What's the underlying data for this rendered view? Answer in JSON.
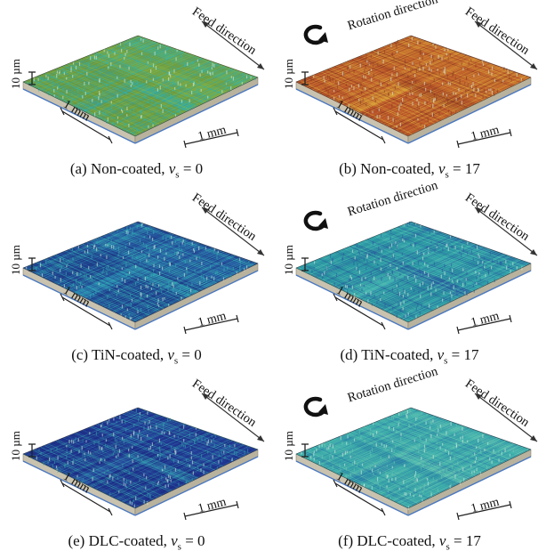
{
  "panels": [
    {
      "id": "a",
      "caption_prefix": "(a) Non-coated, ",
      "var": "v",
      "sub": "s",
      "caption_suffix": " = 0",
      "feed_label": "Feed direction",
      "rotation_label": "",
      "scale_label": "10 µm",
      "length_label_1": "1 mm",
      "length_label_2": "1 mm",
      "palette": [
        "#6b9a3f",
        "#7fb04a",
        "#3fa18f",
        "#2fb6b0"
      ]
    },
    {
      "id": "b",
      "caption_prefix": "(b) Non-coated, ",
      "var": "v",
      "sub": "s",
      "caption_suffix": " = 17",
      "feed_label": "Feed direction",
      "rotation_label": "Rotation direction",
      "scale_label": "10 µm",
      "length_label_1": "1 mm",
      "length_label_2": "1 mm",
      "palette": [
        "#b8532a",
        "#c9762f",
        "#d9a23a",
        "#8e3d22"
      ]
    },
    {
      "id": "c",
      "caption_prefix": "(c) TiN-coated, ",
      "var": "v",
      "sub": "s",
      "caption_suffix": " = 0",
      "feed_label": "Feed direction",
      "rotation_label": "",
      "scale_label": "10 µm",
      "length_label_1": "1 mm",
      "length_label_2": "1 mm",
      "palette": [
        "#1f3f8a",
        "#2a62a8",
        "#2d8fb2",
        "#36b2b6"
      ]
    },
    {
      "id": "d",
      "caption_prefix": "(d) TiN-coated, ",
      "var": "v",
      "sub": "s",
      "caption_suffix": " = 17",
      "feed_label": "Feed direction",
      "rotation_label": "Rotation direction",
      "scale_label": "10 µm",
      "length_label_1": "1 mm",
      "length_label_2": "1 mm",
      "palette": [
        "#2a8f9f",
        "#35a7ad",
        "#4fbcb4",
        "#2a5aa0"
      ]
    },
    {
      "id": "e",
      "caption_prefix": "(e) DLC-coated, ",
      "var": "v",
      "sub": "s",
      "caption_suffix": " = 0",
      "feed_label": "Feed direction",
      "rotation_label": "",
      "scale_label": "10 µm",
      "length_label_1": "1 mm",
      "length_label_2": "1 mm",
      "palette": [
        "#1d2f86",
        "#243f9a",
        "#2f68a8",
        "#35a0b0"
      ]
    },
    {
      "id": "f",
      "caption_prefix": "(f) DLC-coated, ",
      "var": "v",
      "sub": "s",
      "caption_suffix": " = 17",
      "feed_label": "Feed direction",
      "rotation_label": "Rotation direction",
      "scale_label": "10 µm",
      "length_label_1": "1 mm",
      "length_label_2": "1 mm",
      "palette": [
        "#3aa6a8",
        "#4cbab0",
        "#2c7fa6",
        "#6bc7b3"
      ]
    }
  ]
}
